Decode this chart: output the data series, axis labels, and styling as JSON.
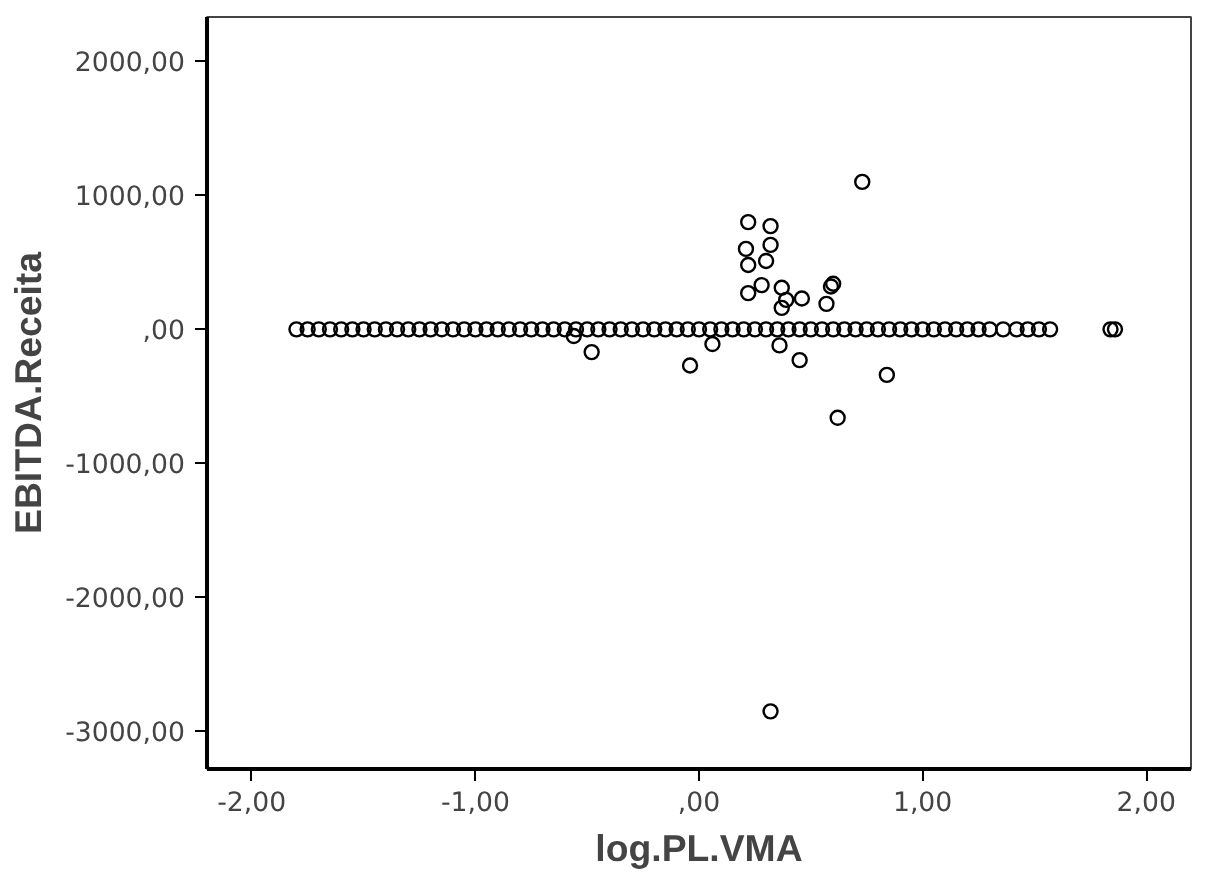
{
  "chart_data": {
    "type": "scatter",
    "xlabel": "log.PL.VMA",
    "ylabel": "EBITDA.Receita",
    "marker": "circle",
    "grid": false,
    "xlim": [
      -2.2,
      2.2
    ],
    "ylim": [
      -3280,
      2330
    ],
    "xticks": [
      {
        "value": -2,
        "label": "-2,00"
      },
      {
        "value": -1,
        "label": "-1,00"
      },
      {
        "value": 0,
        "label": ",00"
      },
      {
        "value": 1,
        "label": "1,00"
      },
      {
        "value": 2,
        "label": "2,00"
      }
    ],
    "yticks": [
      {
        "value": -3000,
        "label": "-3000,00"
      },
      {
        "value": -2000,
        "label": "-2000,00"
      },
      {
        "value": -1000,
        "label": "-1000,00"
      },
      {
        "value": 0,
        "label": ",00"
      },
      {
        "value": 1000,
        "label": "1000,00"
      },
      {
        "value": 2000,
        "label": "2000,00"
      }
    ],
    "series": [
      {
        "color": "#000000",
        "x": [
          -1.8,
          -1.75,
          -1.7,
          -1.65,
          -1.6,
          -1.55,
          -1.5,
          -1.45,
          -1.4,
          -1.35,
          -1.3,
          -1.25,
          -1.2,
          -1.15,
          -1.1,
          -1.05,
          -1.0,
          -0.95,
          -0.9,
          -0.85,
          -0.8,
          -0.75,
          -0.7,
          -0.65,
          -0.6,
          -0.55,
          -0.5,
          -0.45,
          -0.4,
          -0.35,
          -0.3,
          -0.25,
          -0.2,
          -0.15,
          -0.1,
          -0.05,
          0.0,
          0.05,
          0.1,
          0.15,
          0.2,
          0.25,
          0.3,
          0.35,
          0.4,
          0.45,
          0.5,
          0.55,
          0.6,
          0.65,
          0.7,
          0.75,
          0.8,
          0.85,
          0.9,
          0.95,
          1.0,
          1.05,
          1.1,
          1.15,
          1.2,
          1.25,
          1.3,
          1.36,
          1.42,
          1.47,
          1.52,
          1.57,
          1.84,
          1.86,
          0.73,
          0.22,
          0.32,
          0.21,
          0.32,
          0.22,
          0.3,
          0.22,
          0.28,
          0.37,
          0.46,
          0.57,
          0.59,
          0.6,
          0.39,
          0.37,
          -0.48,
          -0.04,
          0.06,
          0.36,
          0.45,
          0.84,
          0.62,
          -0.56,
          0.32
        ],
        "values": [
          0,
          0,
          0,
          0,
          0,
          0,
          0,
          0,
          0,
          0,
          0,
          0,
          0,
          0,
          0,
          0,
          0,
          0,
          0,
          0,
          0,
          0,
          0,
          0,
          0,
          0,
          0,
          0,
          0,
          0,
          0,
          0,
          0,
          0,
          0,
          0,
          0,
          0,
          0,
          0,
          0,
          0,
          0,
          0,
          0,
          0,
          0,
          0,
          0,
          0,
          0,
          0,
          0,
          0,
          0,
          0,
          0,
          0,
          0,
          0,
          0,
          0,
          0,
          0,
          0,
          0,
          0,
          0,
          0,
          0,
          1100,
          800,
          770,
          600,
          630,
          480,
          510,
          270,
          330,
          310,
          230,
          190,
          320,
          340,
          220,
          160,
          -170,
          -270,
          -110,
          -120,
          -230,
          -340,
          -660,
          -50,
          -2850
        ]
      }
    ]
  }
}
